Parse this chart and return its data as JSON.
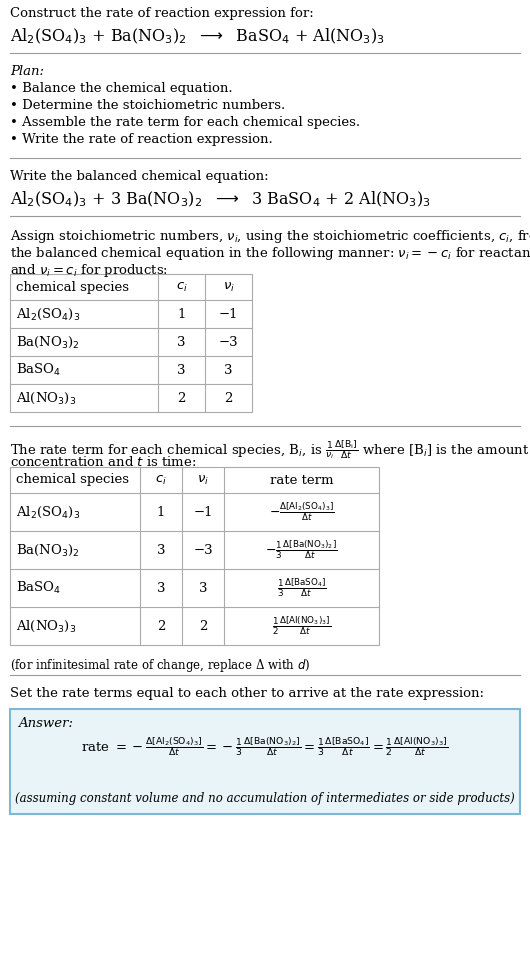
{
  "bg_color": "#ffffff",
  "text_color": "#000000",
  "title_line1": "Construct the rate of reaction expression for:",
  "plan_header": "Plan:",
  "plan_items": [
    "• Balance the chemical equation.",
    "• Determine the stoichiometric numbers.",
    "• Assemble the rate term for each chemical species.",
    "• Write the rate of reaction expression."
  ],
  "balanced_header": "Write the balanced chemical equation:",
  "stoich_intro1": "Assign stoichiometric numbers, $\\nu_i$, using the stoichiometric coefficients, $c_i$, from",
  "stoich_intro2": "the balanced chemical equation in the following manner: $\\nu_i = -c_i$ for reactants",
  "stoich_intro3": "and $\\nu_i = c_i$ for products:",
  "table1_col_headers": [
    "chemical species",
    "$c_i$",
    "$\\nu_i$"
  ],
  "table1_rows": [
    [
      "Al$_2$(SO$_4$)$_3$",
      "1",
      "−1"
    ],
    [
      "Ba(NO$_3$)$_2$",
      "3",
      "−3"
    ],
    [
      "BaSO$_4$",
      "3",
      "3"
    ],
    [
      "Al(NO$_3$)$_3$",
      "2",
      "2"
    ]
  ],
  "rate_intro1": "The rate term for each chemical species, B$_i$, is $\\frac{1}{\\nu_i}\\frac{\\Delta[\\mathrm{B_i}]}{\\Delta t}$ where [B$_i$] is the amount",
  "rate_intro2": "concentration and $t$ is time:",
  "table2_col_headers": [
    "chemical species",
    "$c_i$",
    "$\\nu_i$",
    "rate term"
  ],
  "table2_rows": [
    [
      "Al$_2$(SO$_4$)$_3$",
      "1",
      "−1"
    ],
    [
      "Ba(NO$_3$)$_2$",
      "3",
      "−3"
    ],
    [
      "BaSO$_4$",
      "3",
      "3"
    ],
    [
      "Al(NO$_3$)$_3$",
      "2",
      "2"
    ]
  ],
  "table2_rate_terms": [
    "$-\\frac{\\Delta[\\mathrm{Al_2(SO_4)_3}]}{\\Delta t}$",
    "$-\\frac{1}{3}\\frac{\\Delta[\\mathrm{Ba(NO_3)_2}]}{\\Delta t}$",
    "$\\frac{1}{3}\\frac{\\Delta[\\mathrm{BaSO_4}]}{\\Delta t}$",
    "$\\frac{1}{2}\\frac{\\Delta[\\mathrm{Al(NO_3)_3}]}{\\Delta t}$"
  ],
  "infinitesimal_note": "(for infinitesimal rate of change, replace Δ with $d$)",
  "set_equal_text": "Set the rate terms equal to each other to arrive at the rate expression:",
  "answer_box_color": "#e8f4f8",
  "answer_border_color": "#7ab8d4",
  "answer_header": "Answer:",
  "answer_footnote": "(assuming constant volume and no accumulation of intermediates or side products)"
}
